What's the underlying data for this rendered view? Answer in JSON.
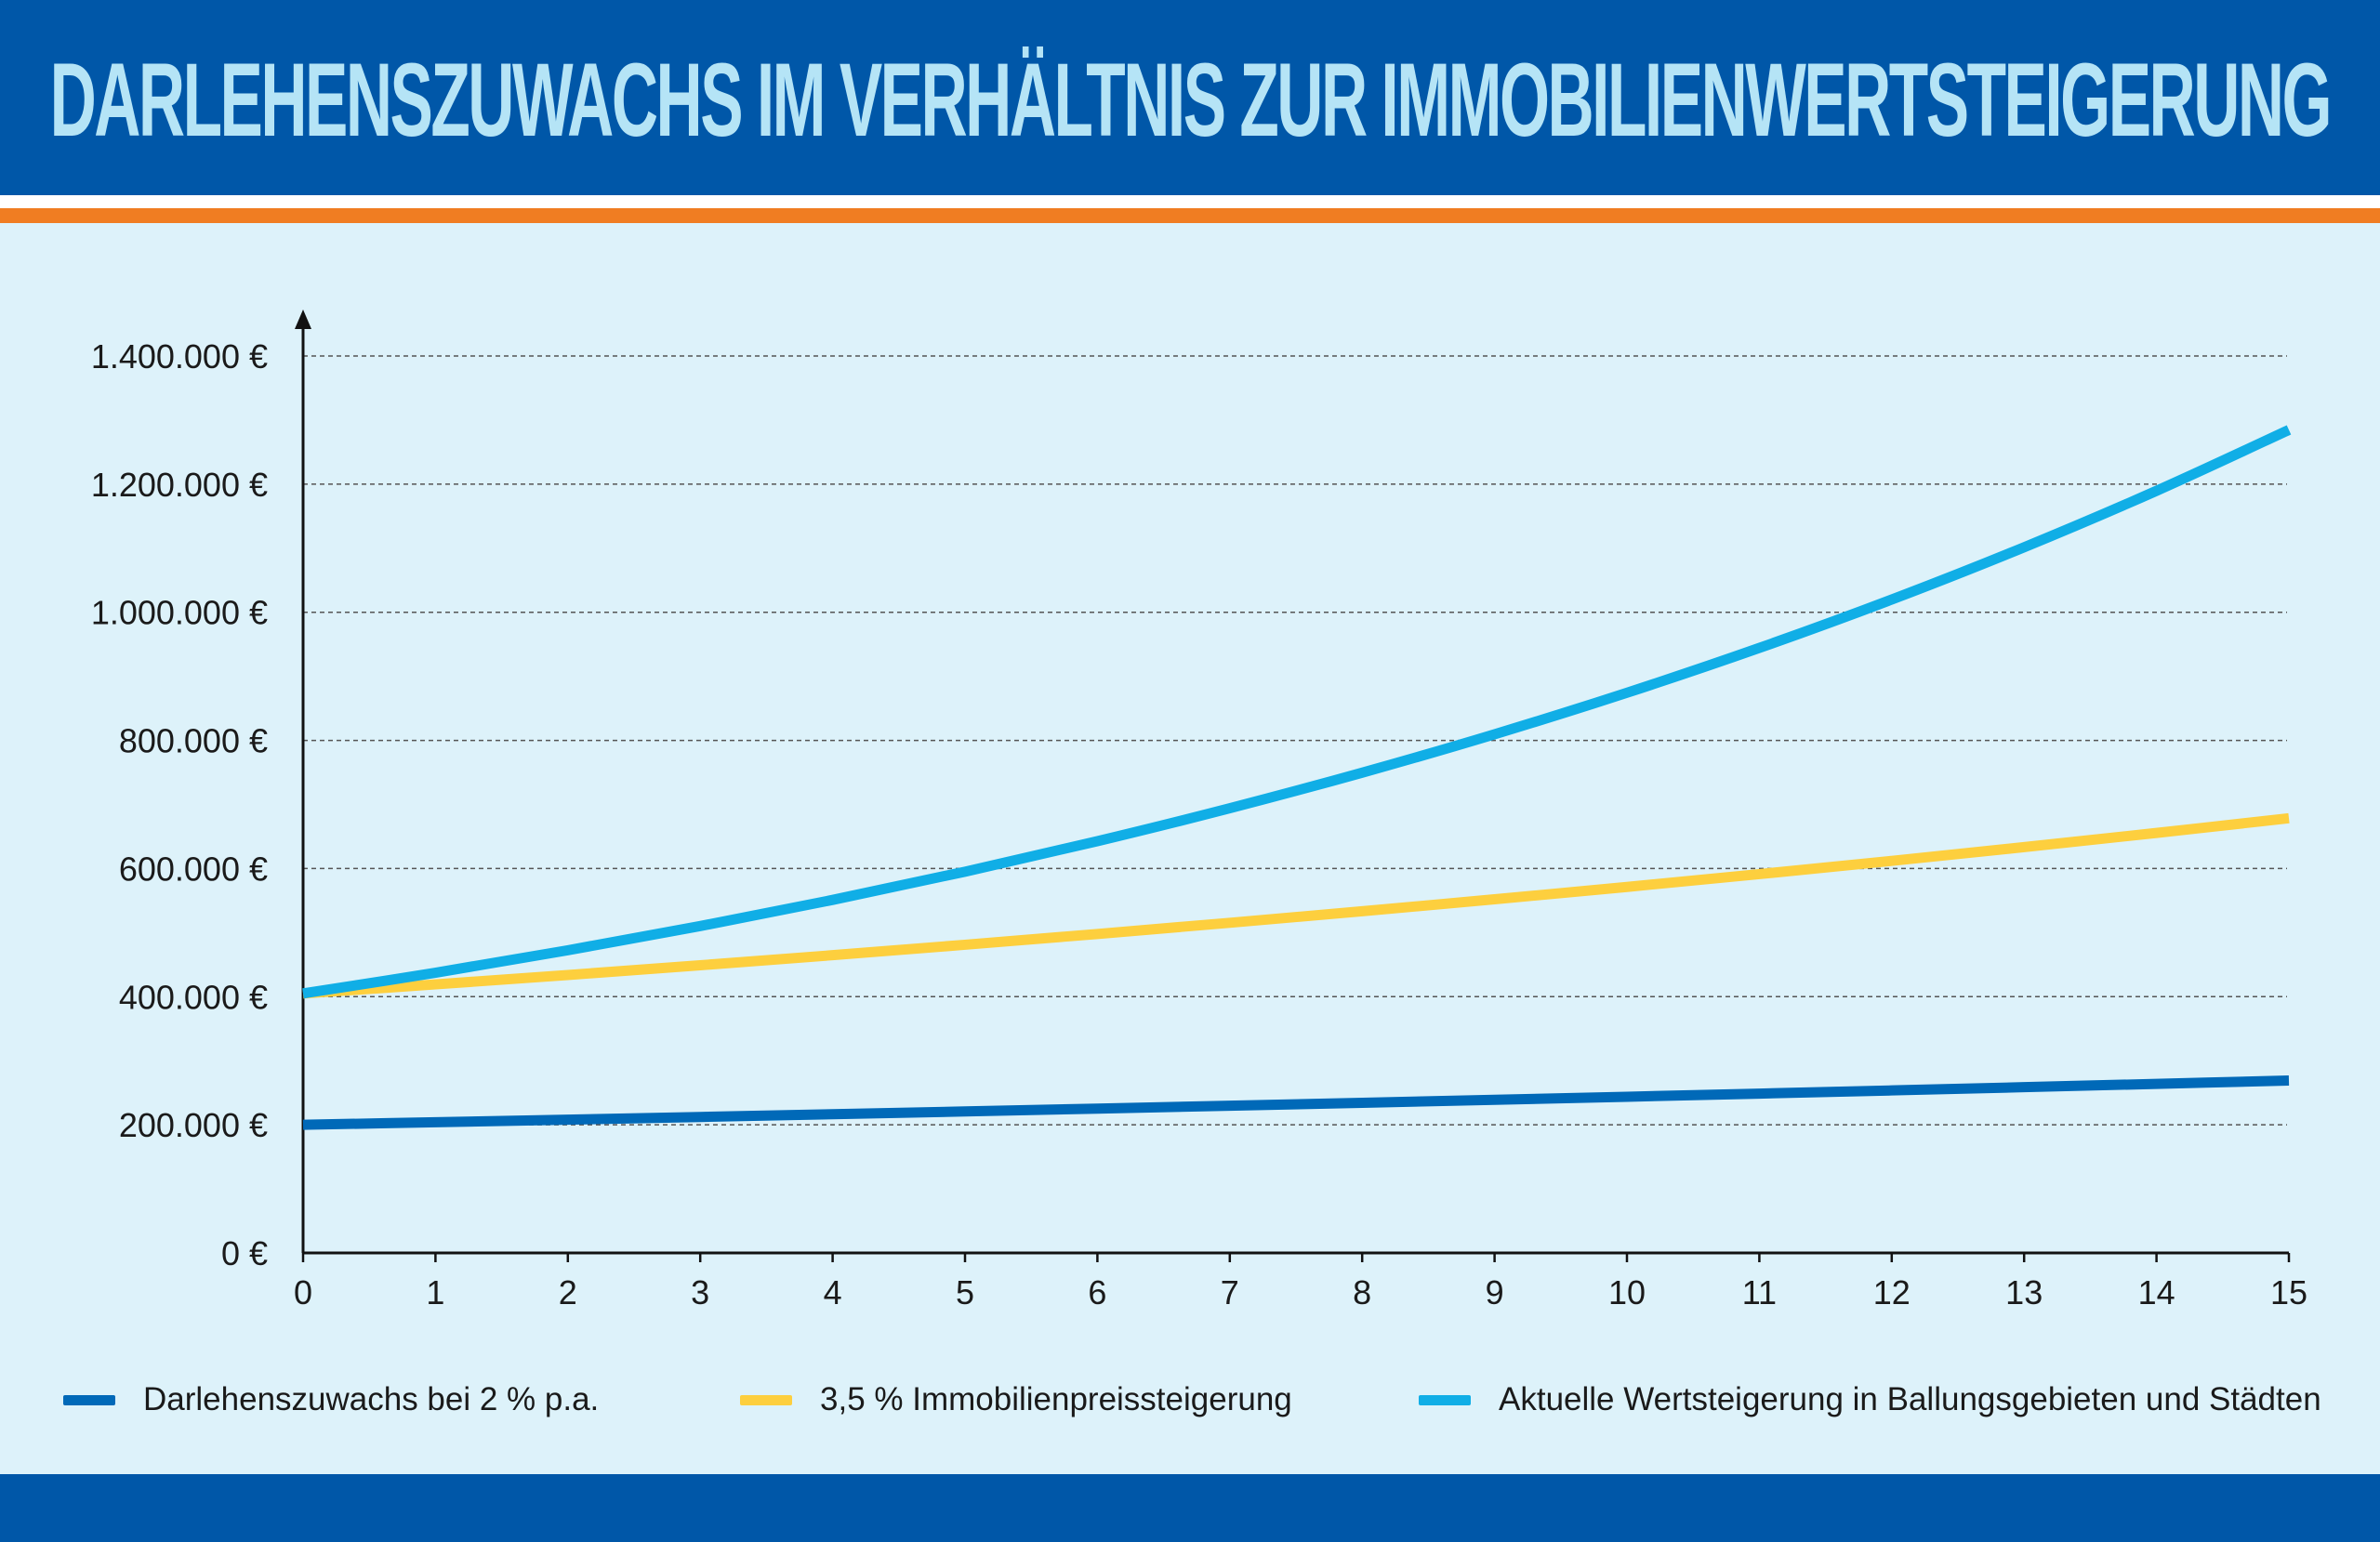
{
  "title": "DARLEHENSZUWACHS IM VERHÄLTNIS ZUR IMMOBILIENWERTSTEIGERUNG",
  "colors": {
    "header_bg": "#0057a8",
    "title_text": "#b5e4f6",
    "accent_orange": "#f07d22",
    "background": "#ddf2fa",
    "series_dark_blue": "#0069b8",
    "series_yellow": "#fdcf3e",
    "series_light_blue": "#10aee6"
  },
  "chart_data": {
    "type": "line",
    "title": "DARLEHENSZUWACHS IM VERHÄLTNIS ZUR IMMOBILIENWERTSTEIGERUNG",
    "xlabel": "",
    "ylabel": "",
    "x": [
      0,
      1,
      2,
      3,
      4,
      5,
      6,
      7,
      8,
      9,
      10,
      11,
      12,
      13,
      14,
      15
    ],
    "xlim": [
      0,
      15
    ],
    "ylim": [
      0,
      1400000
    ],
    "y_ticks": [
      0,
      200000,
      400000,
      600000,
      800000,
      1000000,
      1200000,
      1400000
    ],
    "y_tick_labels": [
      "0 €",
      "200.000 €",
      "400.000 €",
      "600.000 €",
      "800.000 €",
      "1.000.000 €",
      "1.200.000 €",
      "1.400.000 €"
    ],
    "x_tick_labels": [
      "0",
      "1",
      "2",
      "3",
      "4",
      "5",
      "6",
      "7",
      "8",
      "9",
      "10",
      "11",
      "12",
      "13",
      "14",
      "15"
    ],
    "grid": "horizontal dashed",
    "legend_position": "bottom",
    "series": [
      {
        "name": "Darlehenszuwachs bei 2 % p.a.",
        "color": "#0069b8",
        "values": [
          200000,
          204000,
          208080,
          212242,
          216486,
          220816,
          225232,
          229737,
          234332,
          239019,
          243799,
          248675,
          253648,
          258721,
          263896,
          269174
        ]
      },
      {
        "name": "3,5 % Immobilienpreissteigerung",
        "color": "#fdcf3e",
        "values": [
          405000,
          419175,
          433846,
          449031,
          464747,
          481013,
          497848,
          515273,
          533307,
          551973,
          571292,
          591287,
          611982,
          633401,
          655570,
          678515
        ]
      },
      {
        "name": "Aktuelle Wertsteigerung in Ballungsgebieten und Städten",
        "color": "#10aee6",
        "values": [
          405000,
          437400,
          472392,
          510183,
          550998,
          595078,
          642684,
          694099,
          749627,
          809597,
          874365,
          944314,
          1019859,
          1101448,
          1189564,
          1284729
        ]
      }
    ]
  }
}
